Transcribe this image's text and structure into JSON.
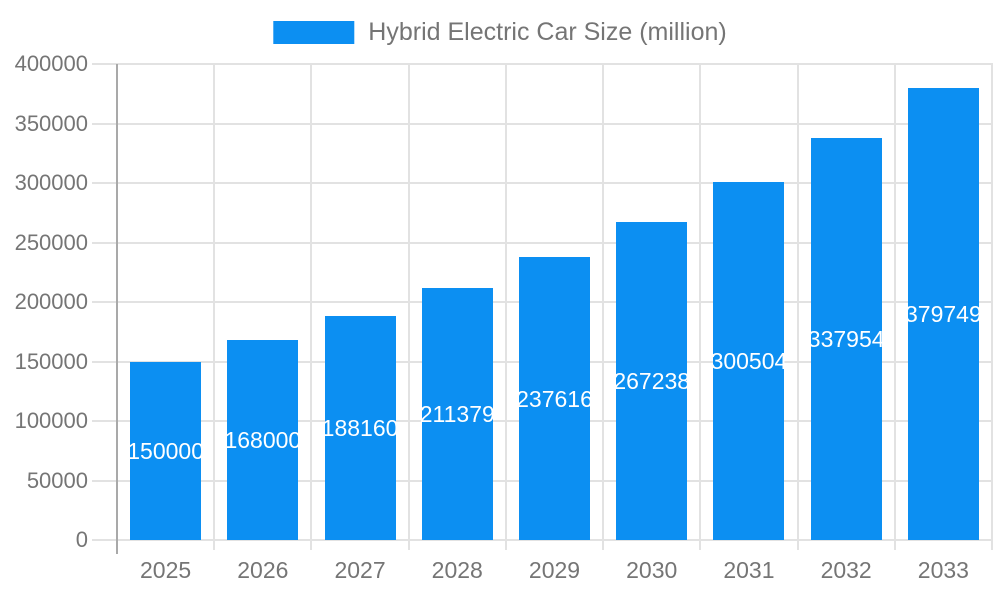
{
  "legend": {
    "label": "Hybrid Electric Car Size (million)"
  },
  "colors": {
    "bar": "#0C8FF2",
    "bar_label": "#ffffff",
    "axis_label": "#757575",
    "gridline": "#e2e2e2",
    "axis_line": "#a9a9a9",
    "background": "#ffffff"
  },
  "chart_data": {
    "type": "bar",
    "title": "Hybrid Electric Car Size (million)",
    "categories": [
      "2025",
      "2026",
      "2027",
      "2028",
      "2029",
      "2030",
      "2031",
      "2032",
      "2033"
    ],
    "values": [
      150000,
      168000,
      188160,
      211379,
      237616,
      267238,
      300504,
      337954,
      379749
    ],
    "value_labels": [
      "150000",
      "168000",
      "188160",
      "211379",
      "237616",
      "267238",
      "300504",
      "337954",
      "379749"
    ],
    "xlabel": "",
    "ylabel": "",
    "ylim": [
      0,
      400000
    ],
    "yticks": [
      0,
      50000,
      100000,
      150000,
      200000,
      250000,
      300000,
      350000,
      400000
    ],
    "grid": true,
    "legend_position": "top",
    "bar_label_position": "center"
  }
}
